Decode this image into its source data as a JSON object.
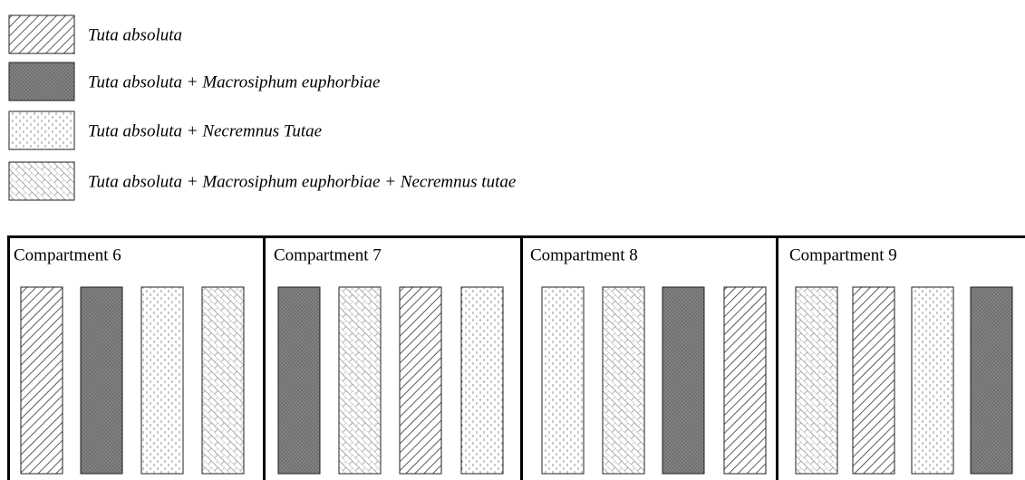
{
  "legend": [
    {
      "label": "Tuta absoluta"
    },
    {
      "label": "Tuta absoluta + Macrosiphum euphorbiae"
    },
    {
      "label": "Tuta absoluta + Necremnus Tutae"
    },
    {
      "label": "Tuta absoluta + Macrosiphum euphorbiae + Necremnus tutae"
    }
  ],
  "compartments": [
    {
      "label": "Compartment 6"
    },
    {
      "label": "Compartment 7"
    },
    {
      "label": "Compartment 8"
    },
    {
      "label": "Compartment 9"
    }
  ]
}
